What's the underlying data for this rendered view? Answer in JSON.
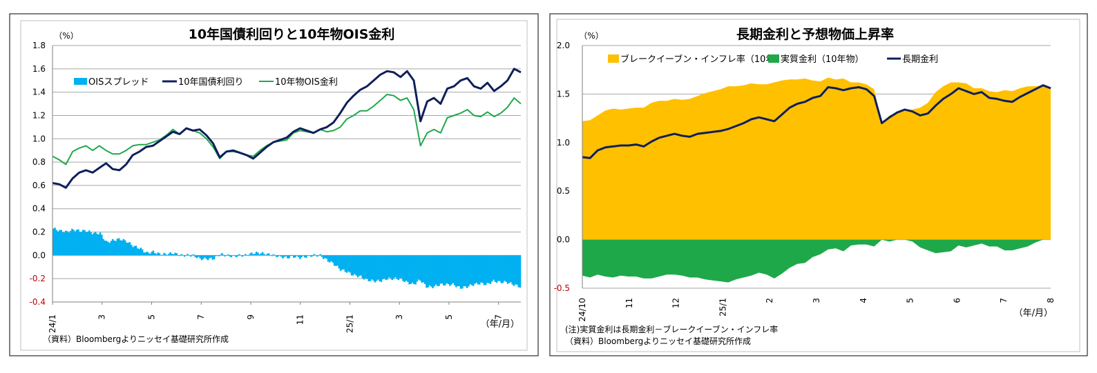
{
  "chart_data": [
    {
      "type": "line",
      "title": "10年国債利回りと10年物OIS金利",
      "ylabel": "（%）",
      "xlabel": "（年/月）",
      "ylim": [
        -0.4,
        1.8
      ],
      "yticks": [
        "1.8",
        "1.6",
        "1.4",
        "1.2",
        "1.0",
        "0.8",
        "0.6",
        "0.4",
        "0.2",
        "0.0",
        "-0.2",
        "-0.4"
      ],
      "xticks": [
        "24/1",
        "3",
        "5",
        "7",
        "9",
        "11",
        "25/1",
        "3",
        "5",
        "7"
      ],
      "legend": [
        "OISスプレッド",
        "10年国債利回り",
        "10年物OIS金利"
      ],
      "colors": {
        "spread": "#00b0f0",
        "jgb": "#0e1f5b",
        "ois": "#1fa84a"
      },
      "source": "（資料）Bloombergよりニッセイ基礎研究所作成",
      "grid": true,
      "series": [
        {
          "name": "10年国債利回り",
          "values": [
            0.62,
            0.61,
            0.58,
            0.66,
            0.71,
            0.73,
            0.71,
            0.75,
            0.79,
            0.74,
            0.73,
            0.78,
            0.86,
            0.89,
            0.93,
            0.94,
            0.98,
            1.02,
            1.06,
            1.04,
            1.09,
            1.07,
            1.08,
            1.03,
            0.96,
            0.84,
            0.89,
            0.9,
            0.88,
            0.86,
            0.83,
            0.88,
            0.93,
            0.97,
            0.99,
            1.01,
            1.06,
            1.09,
            1.07,
            1.05,
            1.08,
            1.1,
            1.14,
            1.22,
            1.31,
            1.37,
            1.42,
            1.45,
            1.5,
            1.55,
            1.58,
            1.57,
            1.53,
            1.58,
            1.5,
            1.15,
            1.32,
            1.35,
            1.3,
            1.43,
            1.45,
            1.5,
            1.52,
            1.45,
            1.43,
            1.48,
            1.41,
            1.45,
            1.5,
            1.6,
            1.57
          ]
        },
        {
          "name": "10年物OIS金利",
          "values": [
            0.85,
            0.82,
            0.78,
            0.89,
            0.92,
            0.94,
            0.9,
            0.94,
            0.9,
            0.87,
            0.87,
            0.9,
            0.94,
            0.95,
            0.95,
            0.97,
            0.99,
            1.03,
            1.08,
            1.04,
            1.09,
            1.07,
            1.05,
            1.0,
            0.93,
            0.83,
            0.89,
            0.89,
            0.88,
            0.86,
            0.85,
            0.9,
            0.94,
            0.97,
            0.98,
            0.99,
            1.05,
            1.07,
            1.06,
            1.05,
            1.08,
            1.06,
            1.07,
            1.1,
            1.17,
            1.2,
            1.24,
            1.24,
            1.28,
            1.33,
            1.38,
            1.37,
            1.33,
            1.35,
            1.25,
            0.94,
            1.05,
            1.08,
            1.05,
            1.18,
            1.2,
            1.22,
            1.25,
            1.2,
            1.19,
            1.23,
            1.19,
            1.22,
            1.27,
            1.35,
            1.3
          ]
        },
        {
          "name": "OISスプレッド",
          "values": [
            0.23,
            0.21,
            0.2,
            0.22,
            0.21,
            0.21,
            0.19,
            0.19,
            0.11,
            0.13,
            0.14,
            0.12,
            0.08,
            0.06,
            0.02,
            0.03,
            0.01,
            0.01,
            0.02,
            0.0,
            0.0,
            0.0,
            -0.03,
            -0.03,
            -0.03,
            0.01,
            0.0,
            -0.01,
            0.0,
            0.0,
            0.02,
            0.02,
            0.01,
            0.0,
            -0.01,
            -0.02,
            -0.01,
            -0.02,
            -0.01,
            0.0,
            0.0,
            -0.04,
            -0.07,
            -0.12,
            -0.14,
            -0.17,
            -0.18,
            -0.21,
            -0.22,
            -0.22,
            -0.2,
            -0.2,
            -0.2,
            -0.23,
            -0.25,
            -0.21,
            -0.27,
            -0.27,
            -0.25,
            -0.25,
            -0.25,
            -0.28,
            -0.27,
            -0.25,
            -0.24,
            -0.25,
            -0.22,
            -0.23,
            -0.23,
            -0.25,
            -0.27
          ]
        }
      ]
    },
    {
      "type": "area",
      "title": "長期金利と予想物価上昇率",
      "ylabel": "（%）",
      "xlabel": "（年/月）",
      "ylim": [
        -0.5,
        2.0
      ],
      "yticks": [
        "2.0",
        "1.5",
        "1.0",
        "0.5",
        "0.0",
        "-0.5"
      ],
      "xticks": [
        "24/10",
        "11",
        "12",
        "25/1",
        "2",
        "3",
        "4",
        "5",
        "6",
        "7",
        "8"
      ],
      "legend": [
        "ブレークイーブン・インフレ率（10年）",
        "実質金利（10年物）",
        "長期金利"
      ],
      "colors": {
        "bei": "#ffc000",
        "real": "#1fa84a",
        "yield": "#0e1f5b"
      },
      "notes": [
        "(注)実質金利は長期金利－ブレークイーブン・インフレ率",
        "（資料）Bloombergよりニッセイ基礎研究所作成"
      ],
      "grid": true,
      "series": [
        {
          "name": "長期金利",
          "values": [
            0.85,
            0.84,
            0.92,
            0.95,
            0.96,
            0.97,
            0.97,
            0.98,
            0.96,
            1.01,
            1.05,
            1.07,
            1.09,
            1.07,
            1.06,
            1.09,
            1.1,
            1.11,
            1.12,
            1.14,
            1.17,
            1.2,
            1.24,
            1.26,
            1.24,
            1.22,
            1.29,
            1.36,
            1.4,
            1.42,
            1.46,
            1.48,
            1.57,
            1.56,
            1.54,
            1.56,
            1.57,
            1.55,
            1.48,
            1.2,
            1.26,
            1.31,
            1.34,
            1.32,
            1.28,
            1.3,
            1.38,
            1.45,
            1.5,
            1.56,
            1.53,
            1.5,
            1.52,
            1.46,
            1.45,
            1.43,
            1.42,
            1.47,
            1.51,
            1.55,
            1.59,
            1.56
          ]
        },
        {
          "name": "ブレークイーブン・インフレ率（10年）",
          "values": [
            1.22,
            1.23,
            1.28,
            1.33,
            1.35,
            1.34,
            1.35,
            1.36,
            1.36,
            1.41,
            1.43,
            1.43,
            1.45,
            1.44,
            1.45,
            1.48,
            1.51,
            1.53,
            1.55,
            1.58,
            1.58,
            1.59,
            1.61,
            1.6,
            1.6,
            1.62,
            1.64,
            1.65,
            1.65,
            1.66,
            1.64,
            1.63,
            1.67,
            1.65,
            1.66,
            1.62,
            1.62,
            1.6,
            1.55,
            1.2,
            1.28,
            1.28,
            1.29,
            1.34,
            1.36,
            1.41,
            1.52,
            1.58,
            1.62,
            1.62,
            1.61,
            1.56,
            1.56,
            1.53,
            1.52,
            1.54,
            1.53,
            1.56,
            1.58,
            1.58,
            1.58,
            1.54
          ]
        },
        {
          "name": "実質金利（10年物）",
          "values": [
            -0.37,
            -0.39,
            -0.36,
            -0.38,
            -0.39,
            -0.37,
            -0.38,
            -0.38,
            -0.4,
            -0.4,
            -0.38,
            -0.36,
            -0.36,
            -0.37,
            -0.39,
            -0.39,
            -0.41,
            -0.42,
            -0.43,
            -0.44,
            -0.41,
            -0.39,
            -0.37,
            -0.34,
            -0.36,
            -0.4,
            -0.35,
            -0.29,
            -0.25,
            -0.24,
            -0.18,
            -0.15,
            -0.1,
            -0.09,
            -0.12,
            -0.06,
            -0.05,
            -0.05,
            -0.07,
            0.0,
            -0.02,
            0.03,
            0.05,
            -0.02,
            -0.08,
            -0.11,
            -0.14,
            -0.13,
            -0.12,
            -0.06,
            -0.08,
            -0.06,
            -0.04,
            -0.07,
            -0.07,
            -0.11,
            -0.11,
            -0.09,
            -0.07,
            -0.03,
            0.01,
            0.02
          ]
        }
      ]
    }
  ]
}
